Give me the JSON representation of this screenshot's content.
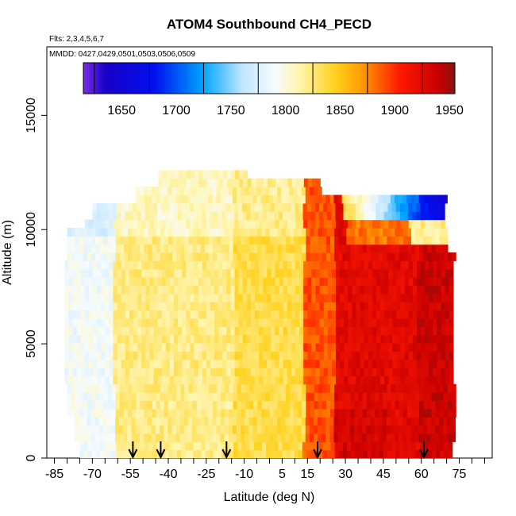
{
  "chart_data": {
    "type": "heatmap",
    "title": "ATOM4 Southbound CH4_PECD",
    "flights_note": "Flts: 2,3,4,5,6,7",
    "dates_note": "MMDD: 0427,0429,0501,0503,0506,0509",
    "xlabel": "Latitude (deg N)",
    "ylabel": "Altitude (m)",
    "xlim": [
      -88,
      88
    ],
    "ylim": [
      0,
      18000
    ],
    "x_ticks": [
      -85,
      -70,
      -55,
      -40,
      -25,
      -10,
      5,
      15,
      30,
      45,
      60,
      75
    ],
    "x_tick_labels": [
      "-85",
      "-70",
      "-55",
      "-40",
      "-25",
      "-10",
      "5",
      "15",
      "30",
      "45",
      "60",
      "75"
    ],
    "y_ticks": [
      0,
      5000,
      10000,
      15000
    ],
    "y_tick_labels": [
      "0",
      "5000",
      "10000",
      "15000"
    ],
    "colorbar": {
      "range": [
        1615,
        1955
      ],
      "ticks": [
        1650,
        1700,
        1750,
        1800,
        1850,
        1900,
        1950
      ],
      "tick_labels": [
        "1650",
        "1700",
        "1750",
        "1800",
        "1850",
        "1900",
        "1950"
      ],
      "stops": [
        {
          "value": 1615,
          "color": "#7a2be6"
        },
        {
          "value": 1635,
          "color": "#1a00c8"
        },
        {
          "value": 1680,
          "color": "#0010f0"
        },
        {
          "value": 1725,
          "color": "#00a6ff"
        },
        {
          "value": 1760,
          "color": "#bfe6ff"
        },
        {
          "value": 1790,
          "color": "#f6fbff"
        },
        {
          "value": 1810,
          "color": "#fff7b8"
        },
        {
          "value": 1845,
          "color": "#ffd21f"
        },
        {
          "value": 1870,
          "color": "#ff9a00"
        },
        {
          "value": 1905,
          "color": "#ff1800"
        },
        {
          "value": 1940,
          "color": "#c80000"
        },
        {
          "value": 1955,
          "color": "#8a1010"
        }
      ]
    },
    "arrows_latitude": [
      -54,
      -43,
      -17,
      19,
      61
    ],
    "series_regions": [
      {
        "lat_range": [
          -80,
          -60
        ],
        "alt_range": [
          0,
          9000
        ],
        "ch4_ppb": 1790
      },
      {
        "lat_range": [
          -60,
          -20
        ],
        "alt_range": [
          0,
          9500
        ],
        "ch4_ppb": 1825
      },
      {
        "lat_range": [
          -20,
          15
        ],
        "alt_range": [
          0,
          11500
        ],
        "ch4_ppb": 1835
      },
      {
        "lat_range": [
          15,
          25
        ],
        "alt_range": [
          0,
          9000
        ],
        "ch4_ppb": 1900
      },
      {
        "lat_range": [
          25,
          72
        ],
        "alt_range": [
          0,
          9000
        ],
        "ch4_ppb": 1930
      },
      {
        "lat_range": [
          30,
          72
        ],
        "alt_range": [
          10200,
          11400
        ],
        "ch4_ppb": 1720
      }
    ]
  }
}
